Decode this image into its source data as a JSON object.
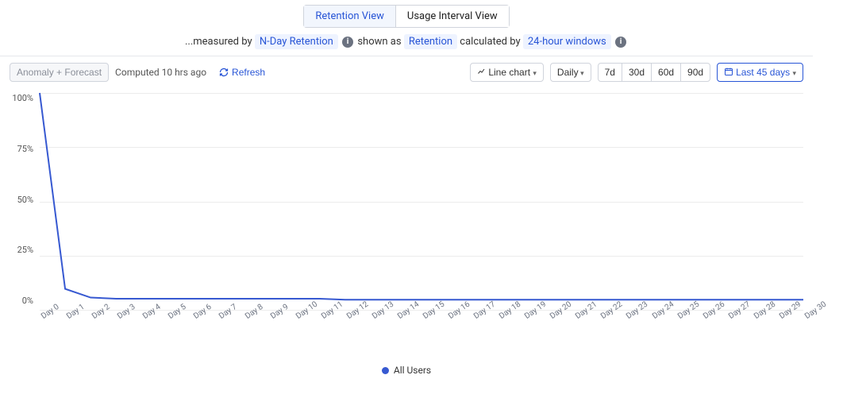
{
  "tabs": {
    "retention_view": "Retention View",
    "usage_interval_view": "Usage Interval View"
  },
  "measure_line": {
    "prefix": "...measured by",
    "nday": "N-Day Retention",
    "shown_as": "shown as",
    "retention": "Retention",
    "calculated_by": "calculated by",
    "windows": "24-hour windows"
  },
  "toolbar": {
    "anomaly": "Anomaly + Forecast",
    "computed": "Computed 10 hrs ago",
    "refresh": "Refresh",
    "chart_type": "Line chart",
    "interval": "Daily",
    "presets": [
      "7d",
      "30d",
      "60d",
      "90d"
    ],
    "range": "Last 45 days"
  },
  "chart": {
    "type": "line",
    "y_ticks": [
      "100%",
      "75%",
      "50%",
      "25%",
      "0%"
    ],
    "ylim": [
      0,
      100
    ],
    "x_labels": [
      "Day 0",
      "Day 1",
      "Day 2",
      "Day 3",
      "Day 4",
      "Day 5",
      "Day 6",
      "Day 7",
      "Day 8",
      "Day 9",
      "Day 10",
      "Day 11",
      "Day 12",
      "Day 13",
      "Day 14",
      "Day 15",
      "Day 16",
      "Day 17",
      "Day 18",
      "Day 19",
      "Day 20",
      "Day 21",
      "Day 22",
      "Day 23",
      "Day 24",
      "Day 25",
      "Day 26",
      "Day 27",
      "Day 28",
      "Day 29",
      "Day 30"
    ],
    "values": [
      100,
      10,
      6,
      5.5,
      5.5,
      5.5,
      5.5,
      5.5,
      5.5,
      5.5,
      5.5,
      5.5,
      5,
      5,
      5,
      5,
      5,
      5,
      5,
      5,
      5,
      5,
      5,
      5,
      5,
      5,
      5,
      5,
      5,
      5,
      5
    ],
    "line_color": "#3759d1",
    "line_width": 2,
    "grid_color": "#ececec",
    "background_color": "#ffffff",
    "x_tick_fontsize": 10,
    "y_tick_fontsize": 11,
    "x_tick_rotation": -35,
    "legend_label": "All Users",
    "legend_color": "#3759d1"
  }
}
